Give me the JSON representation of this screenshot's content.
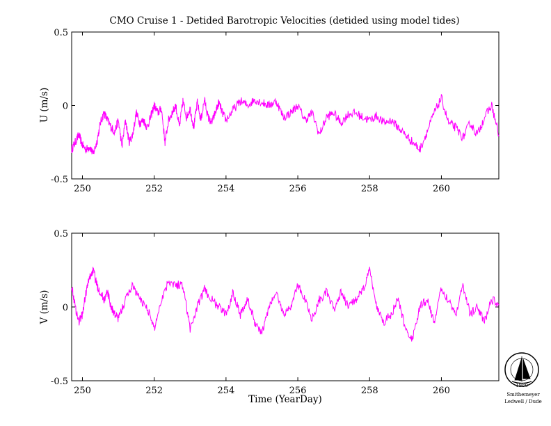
{
  "title": "CMO Cruise 1 - Detided Barotropic Velocities (detided using model tides)",
  "chart_data": [
    {
      "type": "line",
      "panel": "top",
      "ylabel": "U (m/s)",
      "xlabel": "",
      "xlim": [
        249.7,
        261.6
      ],
      "ylim": [
        -0.5,
        0.5
      ],
      "xticks": [
        250,
        252,
        254,
        256,
        258,
        260
      ],
      "yticks": [
        -0.5,
        0,
        0.5
      ],
      "ytick_labels": [
        "-0.5",
        "0",
        "0.5"
      ],
      "series": [
        {
          "color": "#ff00ff",
          "x": [
            249.7,
            249.8,
            249.9,
            250.0,
            250.1,
            250.2,
            250.3,
            250.4,
            250.5,
            250.6,
            250.7,
            250.8,
            250.9,
            251.0,
            251.1,
            251.2,
            251.3,
            251.4,
            251.5,
            251.6,
            251.7,
            251.8,
            251.9,
            252.0,
            252.1,
            252.2,
            252.3,
            252.4,
            252.5,
            252.6,
            252.7,
            252.8,
            252.9,
            253.0,
            253.1,
            253.2,
            253.3,
            253.4,
            253.5,
            253.6,
            253.7,
            253.8,
            253.9,
            254.0,
            254.2,
            254.4,
            254.6,
            254.8,
            255.0,
            255.2,
            255.4,
            255.6,
            255.8,
            256.0,
            256.2,
            256.4,
            256.6,
            256.8,
            257.0,
            257.2,
            257.4,
            257.6,
            257.8,
            258.0,
            258.2,
            258.4,
            258.6,
            258.8,
            259.0,
            259.2,
            259.4,
            259.6,
            259.8,
            260.0,
            260.2,
            260.4,
            260.6,
            260.8,
            261.0,
            261.2,
            261.4,
            261.6
          ],
          "values": [
            -0.3,
            -0.25,
            -0.2,
            -0.27,
            -0.3,
            -0.28,
            -0.33,
            -0.25,
            -0.12,
            -0.05,
            -0.1,
            -0.15,
            -0.18,
            -0.1,
            -0.28,
            -0.1,
            -0.25,
            -0.2,
            -0.05,
            -0.12,
            -0.1,
            -0.15,
            -0.08,
            0.0,
            -0.05,
            -0.02,
            -0.25,
            -0.1,
            -0.05,
            0.0,
            -0.15,
            0.03,
            -0.08,
            -0.02,
            -0.15,
            0.02,
            -0.1,
            0.04,
            -0.08,
            -0.12,
            -0.05,
            0.02,
            -0.05,
            -0.1,
            -0.03,
            0.03,
            0.0,
            0.04,
            0.02,
            0.0,
            0.03,
            -0.08,
            -0.05,
            0.0,
            -0.1,
            -0.05,
            -0.2,
            -0.08,
            -0.05,
            -0.12,
            -0.06,
            -0.05,
            -0.08,
            -0.1,
            -0.07,
            -0.12,
            -0.1,
            -0.15,
            -0.2,
            -0.25,
            -0.3,
            -0.18,
            -0.05,
            0.05,
            -0.12,
            -0.15,
            -0.22,
            -0.12,
            -0.2,
            -0.08,
            0.0,
            -0.2
          ]
        }
      ]
    },
    {
      "type": "line",
      "panel": "bottom",
      "ylabel": "V (m/s)",
      "xlabel": "Time (YearDay)",
      "xlim": [
        249.7,
        261.6
      ],
      "ylim": [
        -0.5,
        0.5
      ],
      "xticks": [
        250,
        252,
        254,
        256,
        258,
        260
      ],
      "yticks": [
        -0.5,
        0,
        0.5
      ],
      "ytick_labels": [
        "-0.5",
        "0",
        "0.5"
      ],
      "series": [
        {
          "color": "#ff00ff",
          "x": [
            249.7,
            249.8,
            249.9,
            250.0,
            250.1,
            250.2,
            250.3,
            250.4,
            250.5,
            250.6,
            250.7,
            250.8,
            250.9,
            251.0,
            251.2,
            251.4,
            251.6,
            251.8,
            252.0,
            252.2,
            252.4,
            252.6,
            252.8,
            253.0,
            253.2,
            253.4,
            253.6,
            253.8,
            254.0,
            254.2,
            254.4,
            254.6,
            254.8,
            255.0,
            255.2,
            255.4,
            255.6,
            255.8,
            256.0,
            256.2,
            256.4,
            256.6,
            256.8,
            257.0,
            257.2,
            257.4,
            257.6,
            257.8,
            258.0,
            258.2,
            258.4,
            258.6,
            258.8,
            259.0,
            259.2,
            259.4,
            259.6,
            259.8,
            260.0,
            260.2,
            260.4,
            260.6,
            260.8,
            261.0,
            261.2,
            261.4,
            261.6
          ],
          "values": [
            0.15,
            0.0,
            -0.1,
            -0.05,
            0.1,
            0.2,
            0.25,
            0.15,
            0.1,
            0.05,
            0.1,
            0.0,
            -0.05,
            -0.08,
            0.05,
            0.15,
            0.05,
            0.0,
            -0.15,
            0.05,
            0.18,
            0.15,
            0.15,
            -0.15,
            0.0,
            0.12,
            0.05,
            0.0,
            -0.05,
            0.1,
            -0.05,
            0.05,
            -0.1,
            -0.18,
            0.0,
            0.1,
            -0.05,
            0.0,
            0.15,
            0.05,
            -0.08,
            0.05,
            0.1,
            -0.02,
            0.1,
            0.0,
            0.05,
            0.1,
            0.25,
            0.0,
            -0.1,
            -0.05,
            0.05,
            -0.15,
            -0.22,
            0.0,
            0.05,
            -0.1,
            0.12,
            0.05,
            -0.05,
            0.15,
            -0.05,
            0.0,
            -0.1,
            0.05,
            0.02
          ]
        }
      ]
    }
  ],
  "logo": {
    "ring_text": "Sea and Ocean Sciences Laboratory",
    "year": "1980",
    "caption_1": "Smithemeyer",
    "caption_2": "Ledwell / Dude"
  }
}
